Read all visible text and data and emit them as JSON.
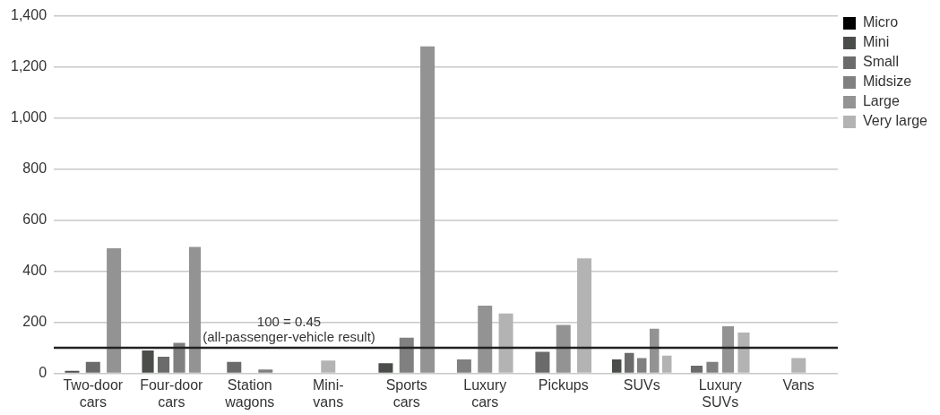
{
  "chart_data": {
    "type": "bar",
    "categories": [
      "Two-door cars",
      "Four-door cars",
      "Station wagons",
      "Mini-vans",
      "Sports cars",
      "Luxury cars",
      "Pickups",
      "SUVs",
      "Luxury SUVs",
      "Vans"
    ],
    "series": [
      {
        "name": "Micro",
        "color": "#000000",
        "values": [
          null,
          null,
          null,
          null,
          null,
          null,
          null,
          null,
          null,
          null
        ]
      },
      {
        "name": "Mini",
        "color": "#4a4d4a",
        "values": [
          10,
          90,
          null,
          null,
          40,
          null,
          null,
          55,
          null,
          null
        ]
      },
      {
        "name": "Small",
        "color": "#6b6b6b",
        "values": [
          45,
          65,
          45,
          null,
          null,
          null,
          85,
          80,
          30,
          null
        ]
      },
      {
        "name": "Midsize",
        "color": "#808080",
        "values": [
          null,
          120,
          15,
          null,
          140,
          55,
          null,
          60,
          45,
          null
        ]
      },
      {
        "name": "Large",
        "color": "#939393",
        "values": [
          490,
          495,
          null,
          null,
          1280,
          265,
          190,
          175,
          185,
          null
        ]
      },
      {
        "name": "Very large",
        "color": "#b3b3b3",
        "values": [
          null,
          null,
          null,
          50,
          null,
          235,
          450,
          70,
          160,
          60
        ]
      }
    ],
    "ylim": [
      0,
      1400
    ],
    "yticks": [
      0,
      200,
      400,
      600,
      800,
      {
        "value": 1000,
        "label": "1,000"
      },
      {
        "value": 1200,
        "label": "1,200"
      },
      {
        "value": 1400,
        "label": "1,400"
      }
    ],
    "grid": "y",
    "legend": "right",
    "ref_lines": [
      {
        "axis": "y",
        "value": 100,
        "label": "100 = 0.45 (all-passenger-vehicle result)",
        "color": "#222222"
      }
    ]
  }
}
